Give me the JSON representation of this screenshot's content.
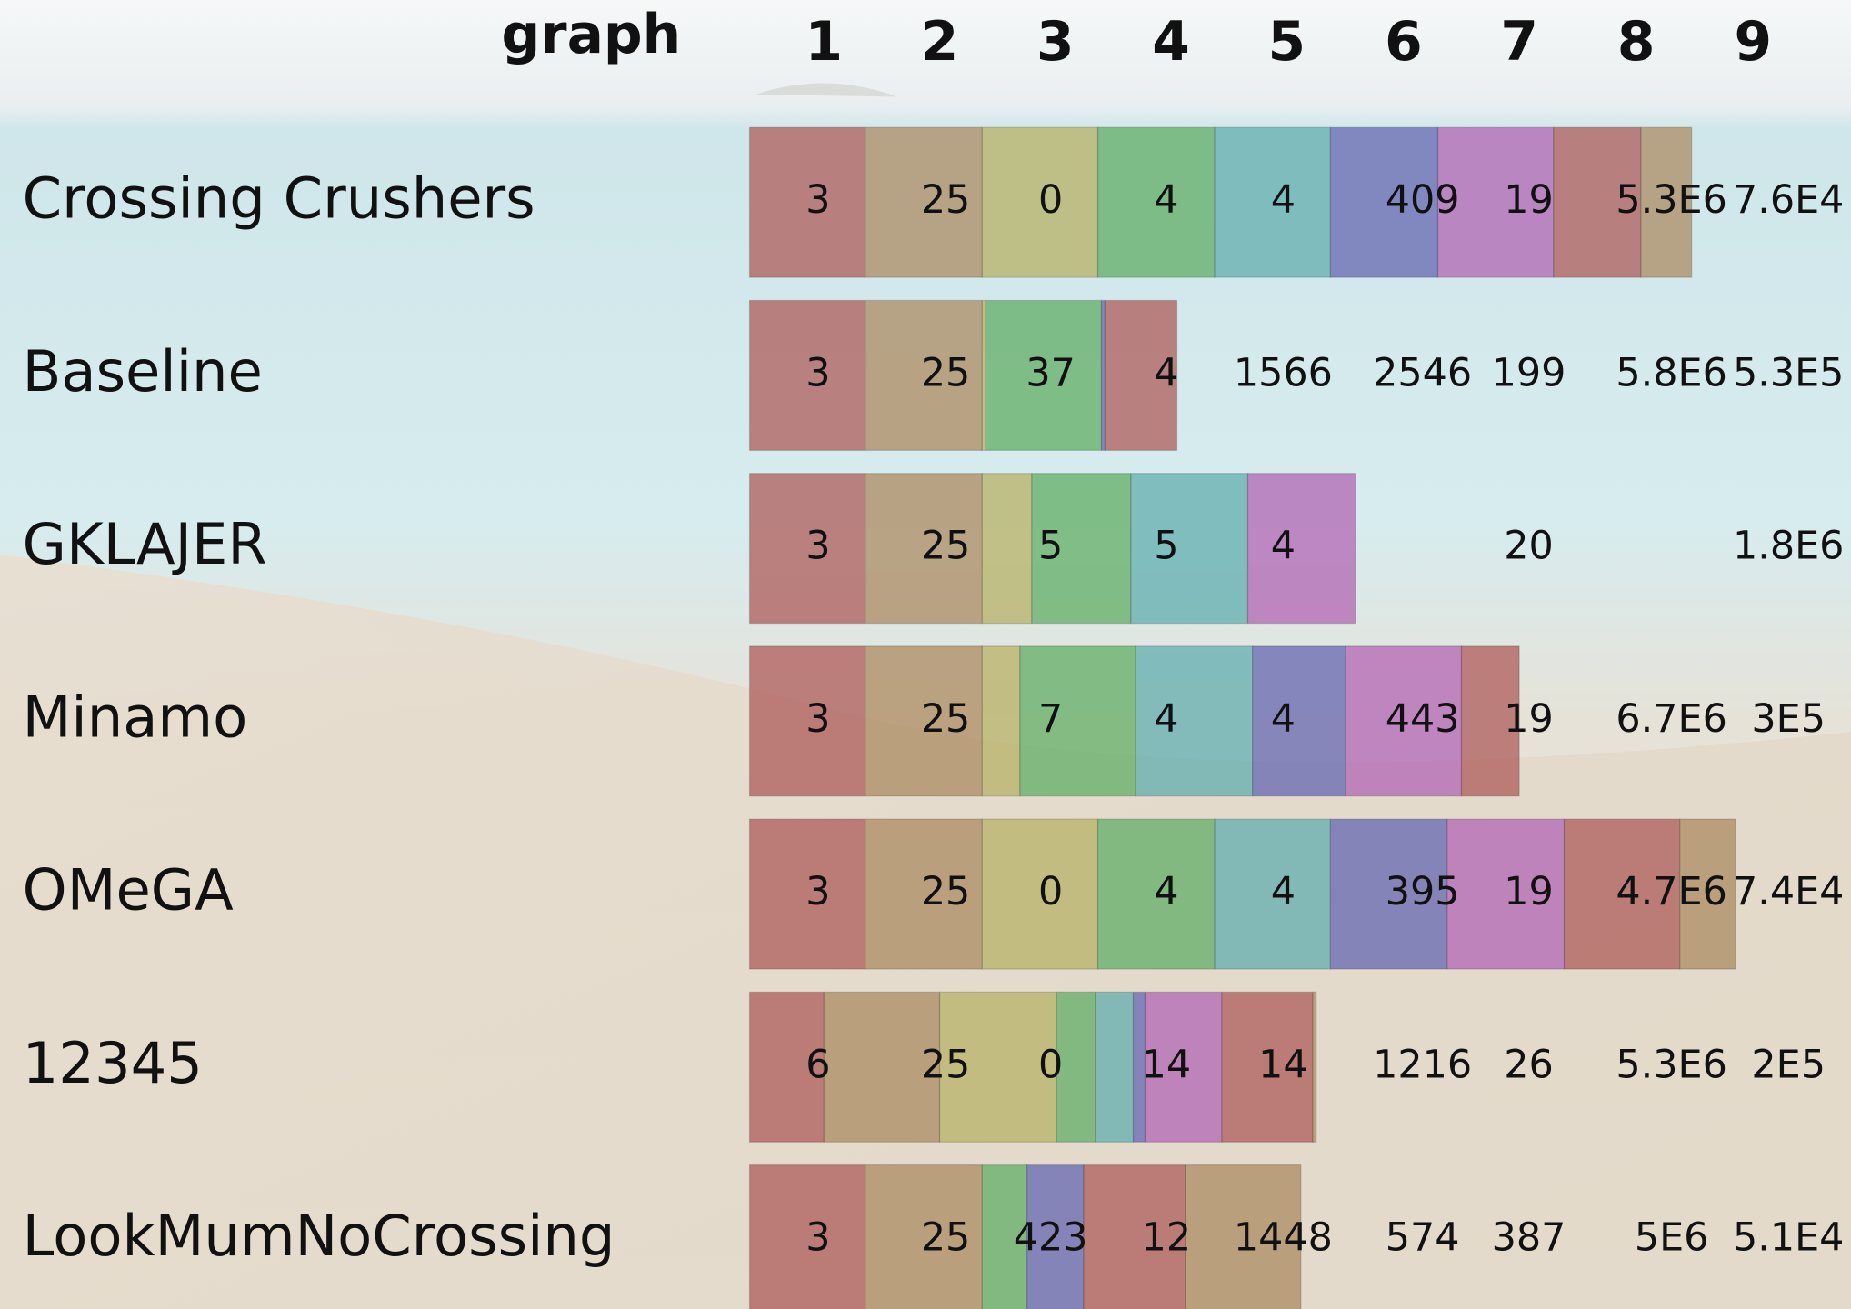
{
  "header": {
    "title": "graph",
    "columns": [
      "1",
      "2",
      "3",
      "4",
      "5",
      "6",
      "7",
      "8",
      "9"
    ]
  },
  "table": {
    "rows": [
      {
        "team": "Crossing Crushers",
        "cells": [
          "3",
          "25",
          "0",
          "4",
          "4",
          "409",
          "19",
          "5.3E6",
          "7.6E4"
        ]
      },
      {
        "team": "Baseline",
        "cells": [
          "3",
          "25",
          "37",
          "4",
          "1566",
          "2546",
          "199",
          "5.8E6",
          "5.3E5"
        ]
      },
      {
        "team": "GKLAJER",
        "cells": [
          "3",
          "25",
          "5",
          "5",
          "4",
          null,
          "20",
          null,
          "1.8E6"
        ]
      },
      {
        "team": "Minamo",
        "cells": [
          "3",
          "25",
          "7",
          "4",
          "4",
          "443",
          "19",
          "6.7E6",
          "3E5"
        ]
      },
      {
        "team": "OMeGA",
        "cells": [
          "3",
          "25",
          "0",
          "4",
          "4",
          "395",
          "19",
          "4.7E6",
          "7.4E4"
        ]
      },
      {
        "team": "12345",
        "cells": [
          "6",
          "25",
          "0",
          "14",
          "14",
          "1216",
          "26",
          "5.3E6",
          "2E5"
        ]
      },
      {
        "team": "LookMumNoCrossing",
        "cells": [
          "3",
          "25",
          "423",
          "12",
          "1448",
          "574",
          "387",
          "5E6",
          "5.1E4"
        ]
      }
    ]
  }
}
